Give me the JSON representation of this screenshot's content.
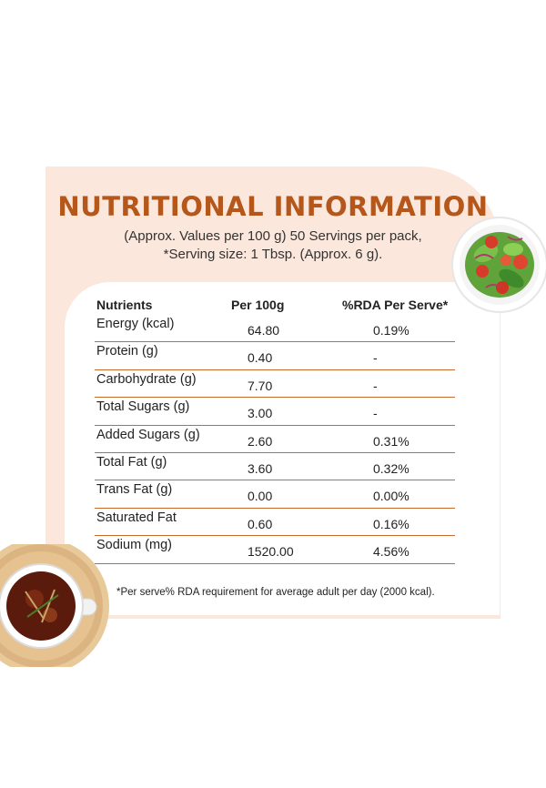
{
  "title": "NUTRITIONAL INFORMATION",
  "subtitle_line1": "(Approx. Values per 100 g) 50 Servings per pack,",
  "subtitle_line2": "*Serving size: 1 Tbsp. (Approx. 6 g).",
  "table": {
    "headers": [
      "Nutrients",
      "Per 100g",
      "%RDA Per Serve*"
    ],
    "rows": [
      {
        "nutrient": "Energy (kcal)",
        "per100": "64.80",
        "rda": "0.19%"
      },
      {
        "nutrient": "Protein (g)",
        "per100": "0.40",
        "rda": "-"
      },
      {
        "nutrient": "Carbohydrate (g)",
        "per100": "7.70",
        "rda": "-"
      },
      {
        "nutrient": "Total Sugars (g)",
        "per100": "3.00",
        "rda": "-"
      },
      {
        "nutrient": "Added Sugars (g)",
        "per100": "2.60",
        "rda": "0.31%"
      },
      {
        "nutrient": "Total Fat (g)",
        "per100": "3.60",
        "rda": "0.32%"
      },
      {
        "nutrient": "Trans Fat (g)",
        "per100": "0.00",
        "rda": "0.00%"
      },
      {
        "nutrient": "Saturated Fat",
        "per100": "0.60",
        "rda": "0.16%"
      },
      {
        "nutrient": "Sodium (mg)",
        "per100": "1520.00",
        "rda": "4.56%"
      }
    ]
  },
  "footnote": "*Per serve% RDA requirement for average adult per day (2000 kcal).",
  "colors": {
    "accent": "#b5561b",
    "panel": "#fbe7dc",
    "divider": "#c86a30"
  },
  "images": [
    "salad-bowl-image",
    "soup-bowl-image"
  ]
}
